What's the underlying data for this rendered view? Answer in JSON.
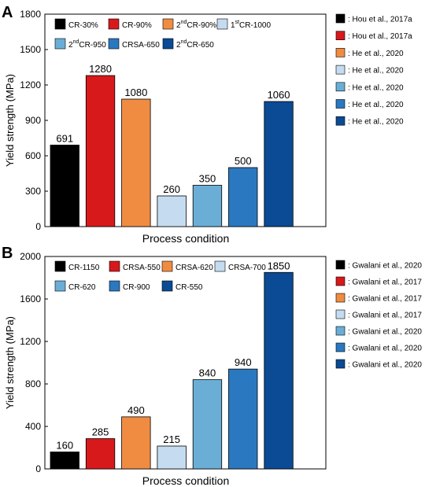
{
  "chart_data": [
    {
      "panel": "A",
      "type": "bar",
      "xlabel": "Process condition",
      "ylabel": "Yield strength (MPa)",
      "ylim": [
        0,
        1800
      ],
      "yticks": [
        0,
        300,
        600,
        900,
        1200,
        1500,
        1800
      ],
      "categories": [
        "CR-30%",
        "CR-90%",
        "2nd CR-90%",
        "1st CR-1000",
        "2nd CR-950",
        "CRSA-650",
        "2nd CR-650"
      ],
      "legend": [
        {
          "sup": "",
          "text": "CR-30%"
        },
        {
          "sup": "",
          "text": "CR-90%"
        },
        {
          "sup": "nd",
          "text": "CR-90%",
          "pre": "2"
        },
        {
          "sup": "st",
          "text": "CR-1000",
          "pre": "1"
        },
        {
          "sup": "nd",
          "text": "CR-950",
          "pre": "2"
        },
        {
          "sup": "",
          "text": "CRSA-650"
        },
        {
          "sup": "nd",
          "text": "CR-650",
          "pre": "2"
        }
      ],
      "values": [
        691,
        1280,
        1080,
        260,
        350,
        500,
        1060
      ],
      "colors": [
        "#000000",
        "#d7191c",
        "#f08c42",
        "#c5dcf0",
        "#6aaed6",
        "#2a78c0",
        "#0b4a94"
      ],
      "references": [
        ": Hou et al., 2017a",
        ": Hou et al., 2017a",
        ": He et al., 2020",
        ": He et al., 2020",
        ": He et al., 2020",
        ": He et al., 2020",
        ": He et al., 2020"
      ]
    },
    {
      "panel": "B",
      "type": "bar",
      "xlabel": "Process condition",
      "ylabel": "Yield strength (MPa)",
      "ylim": [
        0,
        2000
      ],
      "yticks": [
        0,
        400,
        800,
        1200,
        1600,
        2000
      ],
      "categories": [
        "CR-1150",
        "CRSA-550",
        "CRSA-620",
        "CRSA-700",
        "CR-620",
        "CR-900",
        "CR-550"
      ],
      "legend": [
        {
          "sup": "",
          "text": "CR-1150"
        },
        {
          "sup": "",
          "text": "CRSA-550"
        },
        {
          "sup": "",
          "text": "CRSA-620"
        },
        {
          "sup": "",
          "text": "CRSA-700"
        },
        {
          "sup": "",
          "text": "CR-620"
        },
        {
          "sup": "",
          "text": "CR-900"
        },
        {
          "sup": "",
          "text": "CR-550"
        }
      ],
      "values": [
        160,
        285,
        490,
        215,
        840,
        940,
        1850
      ],
      "colors": [
        "#000000",
        "#d7191c",
        "#f08c42",
        "#c5dcf0",
        "#6aaed6",
        "#2a78c0",
        "#0b4a94"
      ],
      "references": [
        ": Gwalani et al., 2020",
        ": Gwalani et al., 2017",
        ": Gwalani et al., 2017",
        ": Gwalani et al., 2017",
        ": Gwalani et al., 2020",
        ": Gwalani et al., 2020",
        ": Gwalani et al., 2020"
      ]
    }
  ]
}
